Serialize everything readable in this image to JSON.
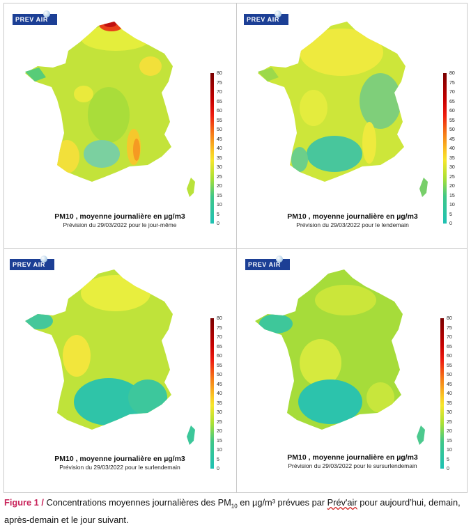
{
  "panels": [
    {
      "logo": "PREV AIR",
      "title": "PM10 , moyenne journalière en µg/m3",
      "subtitle": "Prévision du 29/03/2022 pour le jour-même",
      "scale_labels": [
        "80",
        "75",
        "70",
        "65",
        "60",
        "55",
        "50",
        "45",
        "40",
        "35",
        "30",
        "25",
        "20",
        "15",
        "10",
        "5",
        "0"
      ]
    },
    {
      "logo": "PREV AIR",
      "title": "PM10 , moyenne journalière en µg/m3",
      "subtitle": "Prévision du 29/03/2022 pour le lendemain",
      "scale_labels": [
        "80",
        "75",
        "70",
        "65",
        "60",
        "55",
        "50",
        "45",
        "40",
        "35",
        "30",
        "25",
        "20",
        "15",
        "10",
        "5",
        "0"
      ]
    },
    {
      "logo": "PREV AIR",
      "title": "PM10 , moyenne journalière en µg/m3",
      "subtitle": "Prévision du 29/03/2022 pour le surlendemain",
      "scale_labels": [
        "80",
        "75",
        "70",
        "65",
        "60",
        "55",
        "50",
        "45",
        "40",
        "35",
        "30",
        "25",
        "20",
        "15",
        "10",
        "5",
        "0"
      ]
    },
    {
      "logo": "PREV AIR",
      "title": "PM10 , moyenne journalière en µg/m3",
      "subtitle": "Prévision du 29/03/2022 pour le sursurlendemain",
      "scale_labels": [
        "80",
        "75",
        "70",
        "65",
        "60",
        "55",
        "50",
        "45",
        "40",
        "35",
        "30",
        "25",
        "20",
        "15",
        "10",
        "5",
        "0"
      ]
    }
  ],
  "scale_colors": [
    "#7a0000",
    "#a00000",
    "#c80000",
    "#e00000",
    "#ee1c10",
    "#f24a12",
    "#f57a18",
    "#f8a51c",
    "#fac824",
    "#f6e62c",
    "#d9ec2e",
    "#a9e034",
    "#72d246",
    "#3fc788",
    "#26c3ac",
    "#1fc1b4"
  ],
  "caption": {
    "figure": "Figure 1 /",
    "text_before": " Concentrations moyennes journalières des PM",
    "sub": "10",
    "text_mid": " en µg/m³ prévues par ",
    "underlined": "Prév'air",
    "text_after": " pour aujourd’hui, demain, après-demain et le jour suivant."
  }
}
